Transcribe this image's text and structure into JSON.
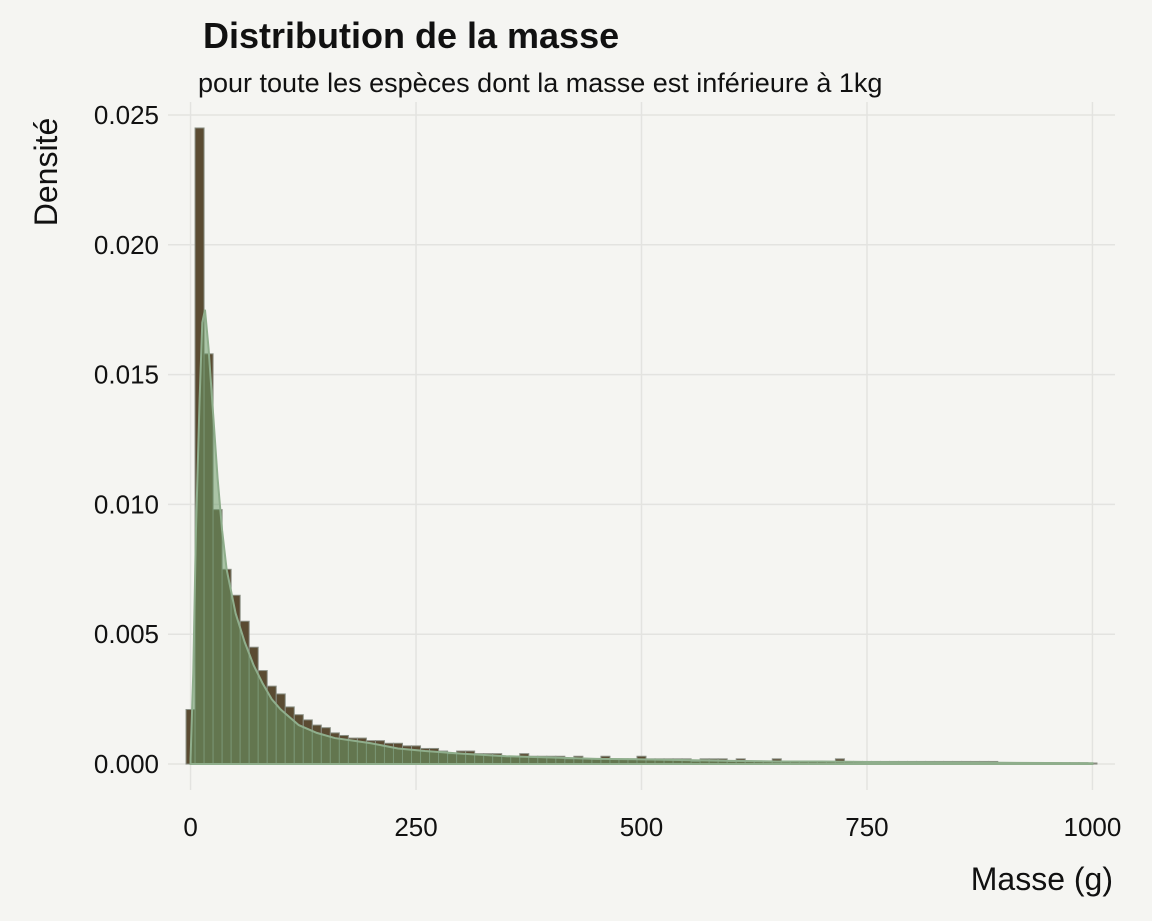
{
  "chart_data": {
    "type": "bar",
    "title": "Distribution de la masse",
    "subtitle": "pour toute les espèces dont la masse est inférieure à 1kg",
    "xlabel": "Masse (g)",
    "ylabel": "Densité",
    "xlim": [
      -25,
      1025
    ],
    "ylim": [
      -0.001,
      0.0255
    ],
    "x_ticks": [
      0,
      250,
      500,
      750,
      1000
    ],
    "x_tick_labels": [
      "0",
      "250",
      "500",
      "750",
      "1000"
    ],
    "y_ticks": [
      0,
      0.005,
      0.01,
      0.015,
      0.02,
      0.025
    ],
    "y_tick_labels": [
      "0.000",
      "0.005",
      "0.010",
      "0.015",
      "0.020",
      "0.025"
    ],
    "grid": true,
    "legend": "none",
    "bin_width": 10,
    "bin_start": -5,
    "bar_color": "#5a4b32",
    "density_color": "#6b9a68",
    "histogram_density": [
      0.0021,
      0.0245,
      0.0158,
      0.0098,
      0.0075,
      0.0065,
      0.0055,
      0.0045,
      0.0036,
      0.003,
      0.0027,
      0.0022,
      0.0019,
      0.0017,
      0.0015,
      0.0014,
      0.0012,
      0.0011,
      0.001,
      0.001,
      0.0009,
      0.0009,
      0.0008,
      0.0008,
      0.0007,
      0.0007,
      0.0006,
      0.0006,
      0.0005,
      0.0004,
      0.0005,
      0.0005,
      0.0004,
      0.0004,
      0.0004,
      0.0003,
      0.0003,
      0.0004,
      0.0003,
      0.0003,
      0.0003,
      0.0003,
      0.0002,
      0.0003,
      0.0002,
      0.0002,
      0.0003,
      0.0002,
      0.0002,
      0.0002,
      0.0003,
      0.0002,
      0.0002,
      0.0002,
      0.0002,
      0.0002,
      0.0001,
      0.0002,
      0.0002,
      0.0002,
      0.0001,
      0.0002,
      0.0001,
      0.0001,
      0.0001,
      0.0002,
      0.0001,
      0.0001,
      0.0001,
      0.0001,
      0.0001,
      0.0001,
      0.0002,
      0.0001,
      0.0001,
      0.0001,
      0.0001,
      0.0001,
      0.0001,
      0.0001,
      0.0001,
      0.0001,
      0.0001,
      0.0001,
      0.0001,
      0.0001,
      0.0001,
      0.0001,
      0.0001,
      0.0001,
      5e-05,
      5e-05,
      5e-05,
      5e-05,
      5e-05,
      5e-05,
      5e-05,
      5e-05,
      5e-05,
      5e-05,
      4e-05
    ],
    "density_curve": {
      "x": [
        0,
        3,
        6,
        10,
        13,
        16,
        20,
        25,
        30,
        35,
        40,
        50,
        60,
        70,
        80,
        90,
        100,
        120,
        140,
        160,
        180,
        200,
        230,
        260,
        300,
        350,
        400,
        450,
        500,
        550,
        600,
        650,
        700,
        750,
        800,
        850,
        900,
        950,
        1000
      ],
      "y": [
        0.0002,
        0.0035,
        0.009,
        0.014,
        0.017,
        0.0175,
        0.016,
        0.0135,
        0.011,
        0.009,
        0.0075,
        0.0058,
        0.0047,
        0.0038,
        0.0031,
        0.0025,
        0.0021,
        0.0015,
        0.0012,
        0.001,
        0.0009,
        0.0008,
        0.0006,
        0.0005,
        0.0004,
        0.0003,
        0.00025,
        0.0002,
        0.00018,
        0.00015,
        0.00012,
        0.0001,
        0.0001,
        8e-05,
        7e-05,
        6e-05,
        5e-05,
        4e-05,
        3e-05
      ]
    }
  }
}
